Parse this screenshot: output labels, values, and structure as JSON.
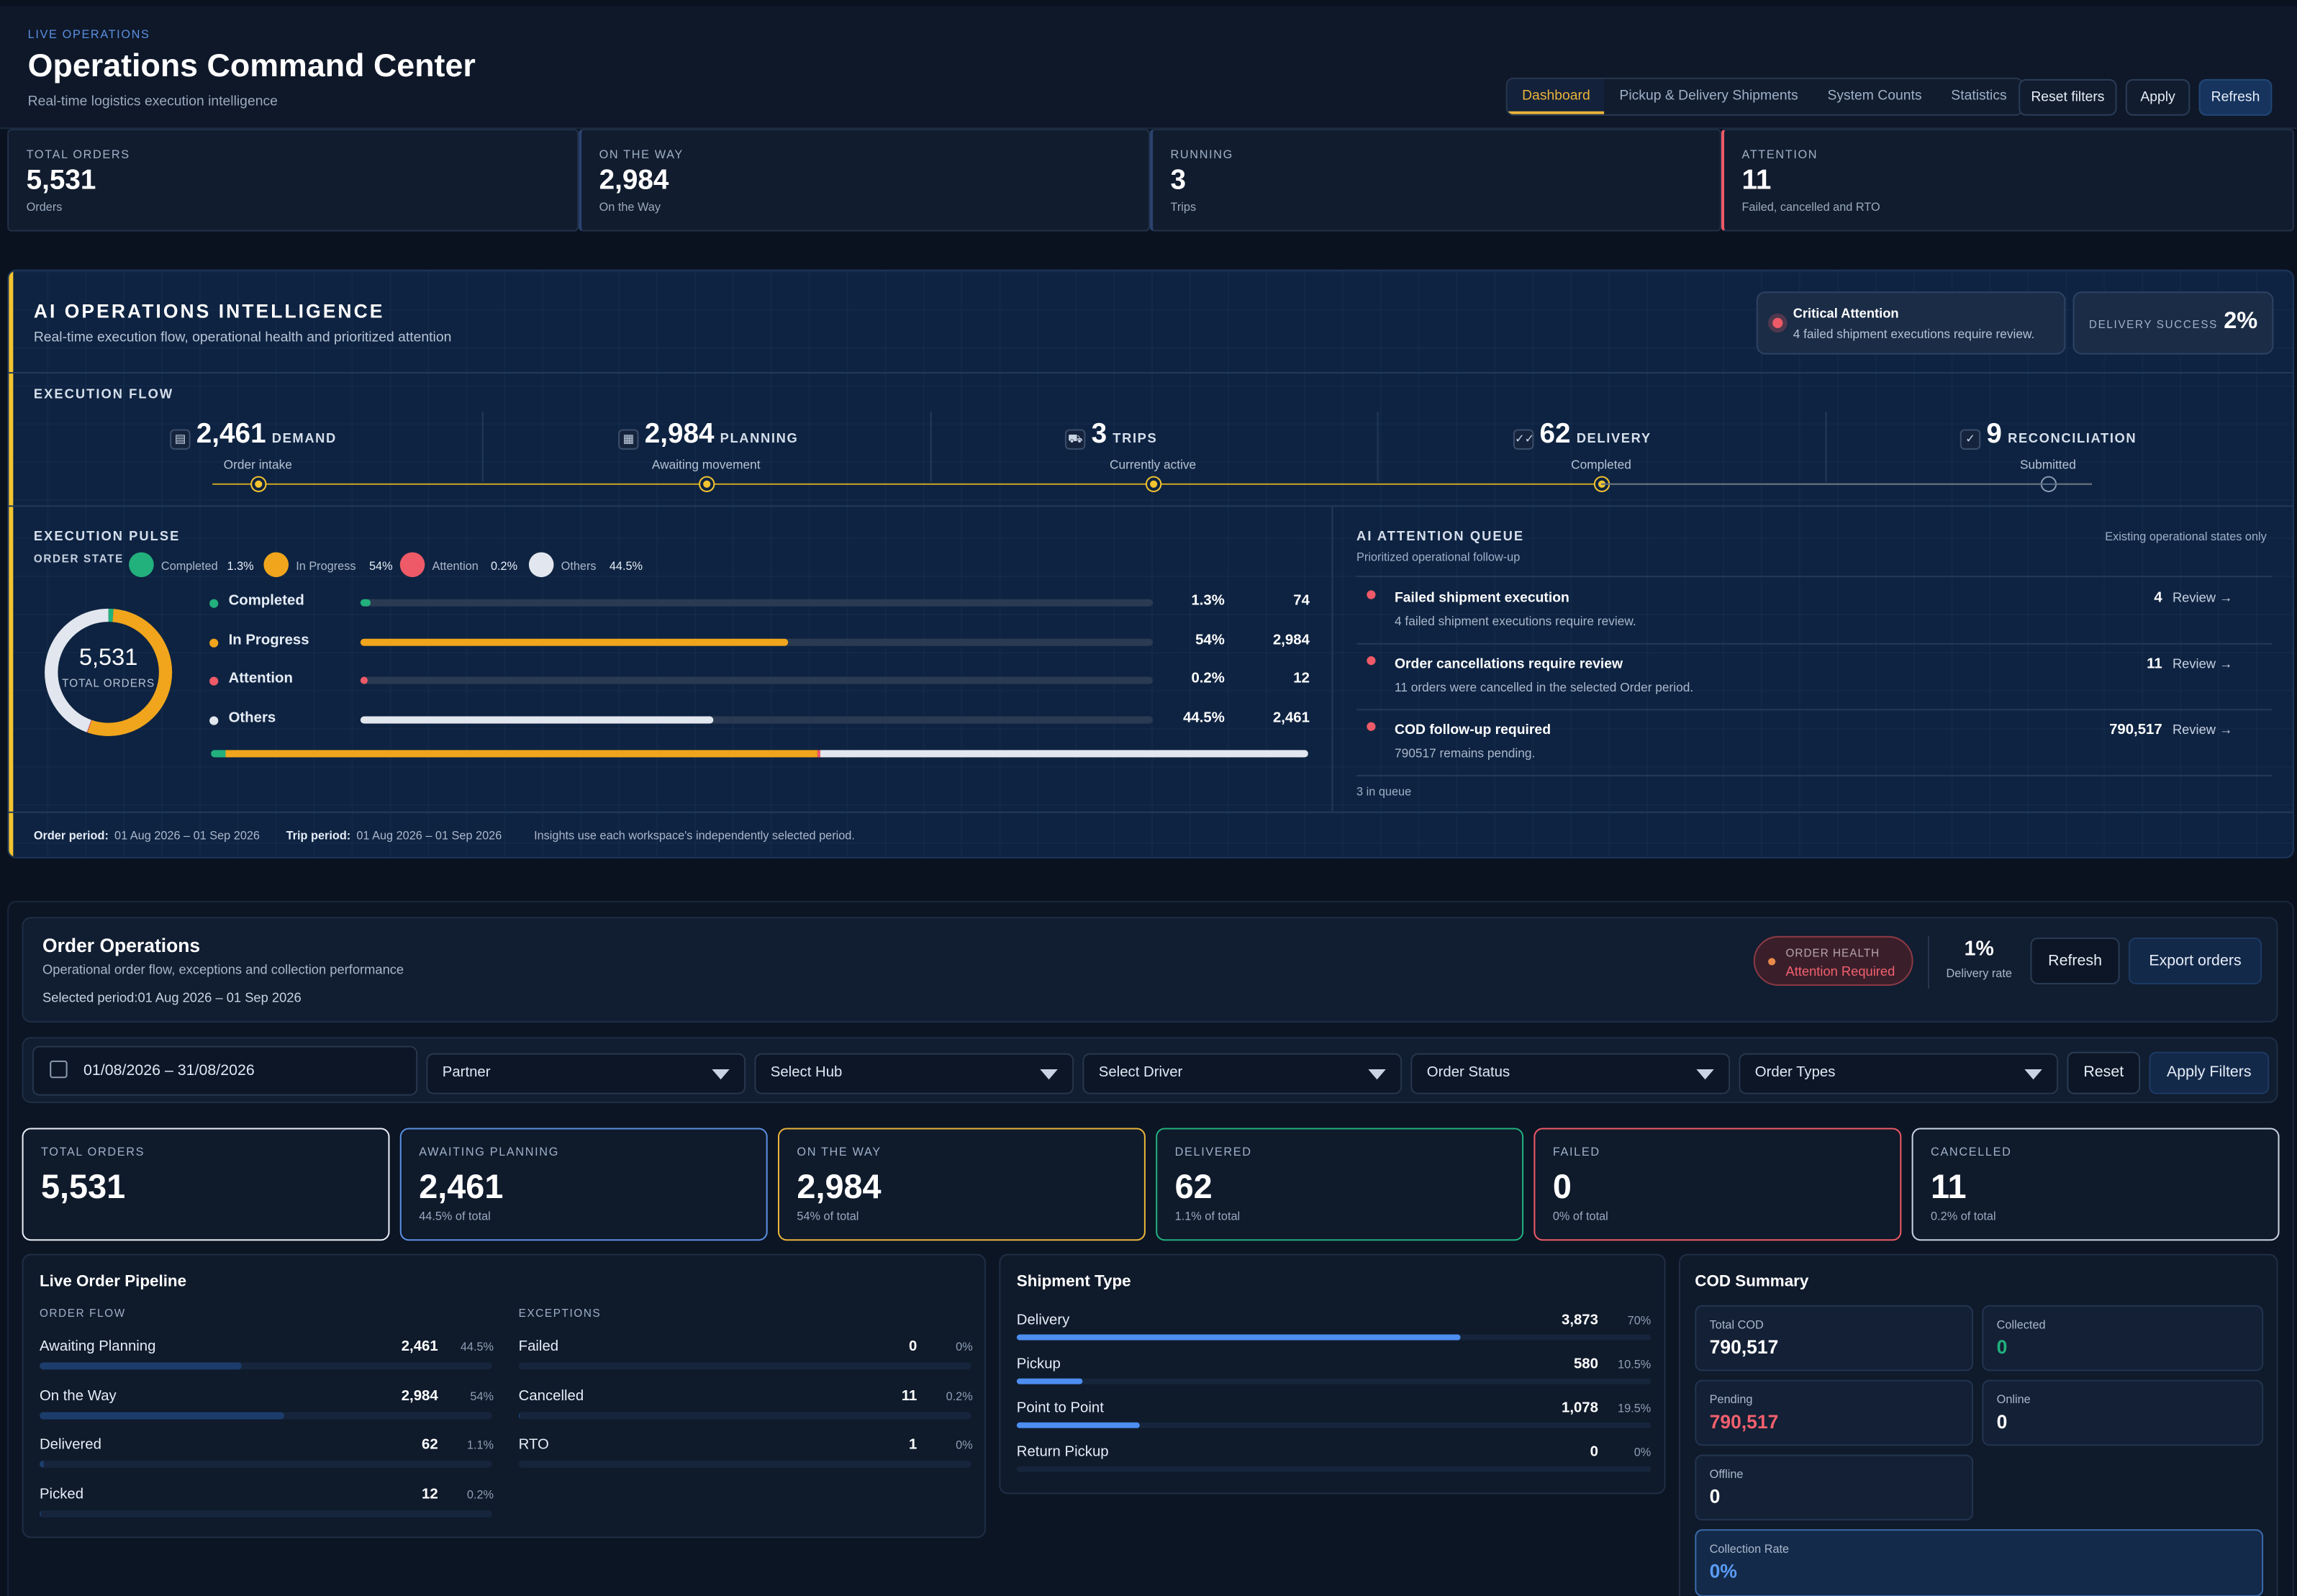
{
  "header": {
    "eyebrow": "LIVE OPERATIONS",
    "title": "Operations Command Center",
    "subtitle": "Real-time logistics execution intelligence",
    "tabs": [
      "Dashboard",
      "Pickup & Delivery Shipments",
      "System Counts",
      "Statistics"
    ],
    "reset_label": "Reset filters",
    "apply_label": "Apply",
    "refresh_label": "Refresh"
  },
  "top_kpis": [
    {
      "label": "TOTAL ORDERS",
      "value": "5,531",
      "sub": "Orders"
    },
    {
      "label": "ON THE WAY",
      "value": "2,984",
      "sub": "On the Way"
    },
    {
      "label": "RUNNING",
      "value": "3",
      "sub": "Trips"
    },
    {
      "label": "ATTENTION",
      "value": "11",
      "sub": "Failed, cancelled and RTO"
    }
  ],
  "ai": {
    "title": "AI OPERATIONS INTELLIGENCE",
    "subtitle": "Real-time execution flow, operational health and prioritized attention",
    "critical_title": "Critical Attention",
    "critical_sub": "4 failed shipment executions require review.",
    "success_label": "DELIVERY SUCCESS",
    "success_value": "2%",
    "flow_title": "EXECUTION FLOW",
    "flow": [
      {
        "icon": "inbox-icon",
        "glyph": "▤",
        "value": "2,461",
        "label": "DEMAND",
        "sub": "Order intake"
      },
      {
        "icon": "clipboard-icon",
        "glyph": "▦",
        "value": "2,984",
        "label": "PLANNING",
        "sub": "Awaiting movement"
      },
      {
        "icon": "truck-icon",
        "glyph": "⛟",
        "value": "3",
        "label": "TRIPS",
        "sub": "Currently active"
      },
      {
        "icon": "double-check-icon",
        "glyph": "✓✓",
        "value": "62",
        "label": "DELIVERY",
        "sub": "Completed"
      },
      {
        "icon": "check-icon",
        "glyph": "✓",
        "value": "9",
        "label": "RECONCILIATION",
        "sub": "Submitted"
      }
    ],
    "pulse_title": "EXECUTION PULSE",
    "order_state_label": "ORDER STATE",
    "legend": [
      {
        "name": "Completed",
        "pct": "1.3%",
        "color": "#22b07d"
      },
      {
        "name": "In Progress",
        "pct": "54%",
        "color": "#f0a51c"
      },
      {
        "name": "Attention",
        "pct": "0.2%",
        "color": "#ee5a67"
      },
      {
        "name": "Others",
        "pct": "44.5%",
        "color": "#e2e6ee"
      }
    ],
    "donut_value": "5,531",
    "donut_label": "TOTAL ORDERS",
    "rows": [
      {
        "name": "Completed",
        "pct": "1.3%",
        "count": "74",
        "frac": 0.013,
        "color": "#22b07d"
      },
      {
        "name": "In Progress",
        "pct": "54%",
        "count": "2,984",
        "frac": 0.54,
        "color": "#f0a51c"
      },
      {
        "name": "Attention",
        "pct": "0.2%",
        "count": "12",
        "frac": 0.002,
        "color": "#ee5a67"
      },
      {
        "name": "Others",
        "pct": "44.5%",
        "count": "2,461",
        "frac": 0.445,
        "color": "#e2e6ee"
      }
    ],
    "queue_title": "AI ATTENTION QUEUE",
    "queue_sub": "Prioritized operational follow-up",
    "queue_note": "Existing operational states only",
    "queue": [
      {
        "title": "Failed shipment execution",
        "sub": "4 failed shipment executions require review.",
        "count": "4",
        "action": "Review →"
      },
      {
        "title": "Order cancellations require review",
        "sub": "11 orders were cancelled in the selected Order period.",
        "count": "11",
        "action": "Review →"
      },
      {
        "title": "COD follow-up required",
        "sub": "790517 remains pending.",
        "count": "790,517",
        "action": "Review →"
      }
    ],
    "queue_count": "3 in queue",
    "footer_order_label": "Order period:",
    "footer_order": "01 Aug 2026 – 01 Sep 2026",
    "footer_trip_label": "Trip period:",
    "footer_trip": "01 Aug 2026 – 01 Sep 2026",
    "footer_note": "Insights use each workspace's independently selected period."
  },
  "orders": {
    "title": "Order Operations",
    "subtitle": "Operational order flow, exceptions and collection performance",
    "period_label": "Selected period:",
    "period": "01 Aug 2026 – 01 Sep 2026",
    "health_label": "ORDER HEALTH",
    "health_value": "Attention Required",
    "rate_value": "1%",
    "rate_label": "Delivery rate",
    "refresh_label": "Refresh",
    "export_label": "Export orders",
    "filters": {
      "date": "01/08/2026 – 31/08/2026",
      "partner": "Partner",
      "hub": "Select Hub",
      "driver": "Select Driver",
      "status": "Order Status",
      "types": "Order Types",
      "reset": "Reset",
      "apply": "Apply Filters"
    },
    "kpis": [
      {
        "label": "TOTAL ORDERS",
        "value": "5,531",
        "sub": "",
        "accent": "#e9eef6"
      },
      {
        "label": "AWAITING PLANNING",
        "value": "2,461",
        "sub": "44.5% of total",
        "accent": "#5b8fe0"
      },
      {
        "label": "ON THE WAY",
        "value": "2,984",
        "sub": "54% of total",
        "accent": "#e9b43a"
      },
      {
        "label": "DELIVERED",
        "value": "62",
        "sub": "1.1% of total",
        "accent": "#22b07d"
      },
      {
        "label": "FAILED",
        "value": "0",
        "sub": "0% of total",
        "accent": "#ee5a67"
      },
      {
        "label": "CANCELLED",
        "value": "11",
        "sub": "0.2% of total",
        "accent": "#c9d2df"
      }
    ]
  },
  "pipeline": {
    "title": "Live Order Pipeline",
    "flow_label": "ORDER FLOW",
    "exc_label": "EXCEPTIONS",
    "flow": [
      {
        "name": "Awaiting Planning",
        "value": "2,461",
        "pct": "44.5%",
        "frac": 0.445
      },
      {
        "name": "On the Way",
        "value": "2,984",
        "pct": "54%",
        "frac": 0.54
      },
      {
        "name": "Delivered",
        "value": "62",
        "pct": "1.1%",
        "frac": 0.011
      },
      {
        "name": "Picked",
        "value": "12",
        "pct": "0.2%",
        "frac": 0.002
      }
    ],
    "exceptions": [
      {
        "name": "Failed",
        "value": "0",
        "pct": "0%",
        "frac": 0
      },
      {
        "name": "Cancelled",
        "value": "11",
        "pct": "0.2%",
        "frac": 0.002
      },
      {
        "name": "RTO",
        "value": "1",
        "pct": "0%",
        "frac": 0
      }
    ]
  },
  "shipment": {
    "title": "Shipment Type",
    "items": [
      {
        "name": "Delivery",
        "value": "3,873",
        "pct": "70%",
        "frac": 0.7
      },
      {
        "name": "Pickup",
        "value": "580",
        "pct": "10.5%",
        "frac": 0.105
      },
      {
        "name": "Point to Point",
        "value": "1,078",
        "pct": "19.5%",
        "frac": 0.195
      },
      {
        "name": "Return Pickup",
        "value": "0",
        "pct": "0%",
        "frac": 0
      }
    ]
  },
  "cod": {
    "title": "COD Summary",
    "total_label": "Total COD",
    "total": "790,517",
    "collected_label": "Collected",
    "collected": "0",
    "pending_label": "Pending",
    "pending": "790,517",
    "online_label": "Online",
    "online": "0",
    "offline_label": "Offline",
    "offline": "0",
    "rate_label": "Collection Rate",
    "rate": "0%"
  }
}
